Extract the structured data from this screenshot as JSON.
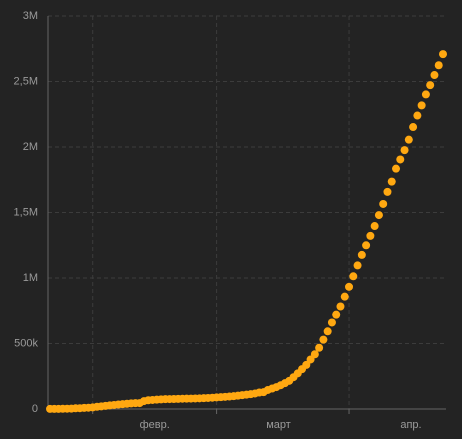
{
  "chart_data": {
    "type": "scatter",
    "values": [
      555,
      654,
      941,
      1434,
      2118,
      2927,
      5578,
      6166,
      8234,
      9927,
      12038,
      16787,
      19881,
      23892,
      27635,
      30794,
      34391,
      37120,
      40150,
      42762,
      44802,
      45221,
      60368,
      66885,
      69030,
      71224,
      73258,
      75136,
      75639,
      76197,
      76819,
      78572,
      78958,
      79561,
      80406,
      81388,
      82746,
      84112,
      86011,
      88369,
      90306,
      92840,
      95120,
      97886,
      101801,
      105847,
      109821,
      113590,
      118620,
      125875,
      128352,
      145205,
      156101,
      167454,
      181574,
      197102,
      214821,
      242570,
      272208,
      304507,
      336953,
      378231,
      418041,
      467653,
      529591,
      593291,
      660706,
      720117,
      782365,
      857487,
      932605,
      1013157,
      1095917,
      1176060,
      1249754,
      1321481,
      1396476,
      1480202,
      1565278,
      1657526,
      1735650,
      1834721,
      1904838,
      1976191,
      2056054,
      2152437,
      2240190,
      2317758,
      2401378,
      2472258,
      2549294,
      2623960,
      2708885
    ],
    "color": "#ffa811",
    "xlim": [
      0,
      92
    ],
    "xticks": [
      10,
      39,
      70
    ],
    "xtick_labels": [
      "февр.",
      "март",
      "апр."
    ],
    "ylim": [
      0,
      3000000
    ],
    "yticks": [
      0,
      {
        "value": 500000,
        "label": "500k"
      },
      {
        "value": 1000000,
        "label": "1M"
      },
      {
        "value": 1500000,
        "label": "1,5M"
      },
      {
        "value": 2000000,
        "label": "2M"
      },
      {
        "value": 2500000,
        "label": "2,5M"
      },
      {
        "value": 3000000,
        "label": "3M"
      }
    ],
    "grid": true
  }
}
